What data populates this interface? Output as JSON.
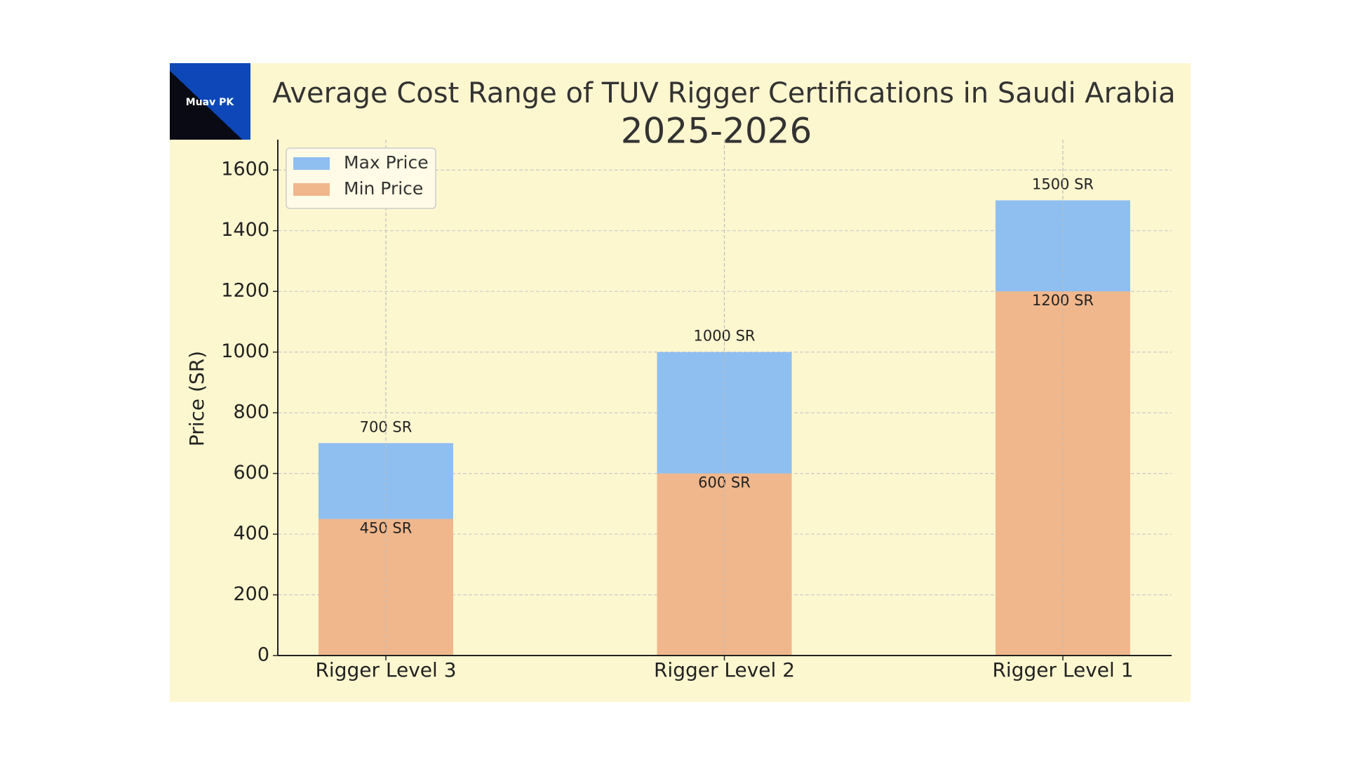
{
  "chart_data": {
    "type": "bar",
    "logo": "Muav PK",
    "title": "Average Cost Range of TUV Rigger Certifications in Saudi Arabia",
    "subtitle": "2025-2026",
    "y_label": "Price (SR)",
    "categories": [
      "Rigger Level 3",
      "Rigger Level 2",
      "Rigger Level 1"
    ],
    "series": [
      {
        "name": "Max Price",
        "color": "#8fbff0",
        "values": [
          700,
          1000,
          1500
        ],
        "value_labels": [
          "700 SR",
          "1000 SR",
          "1500 SR"
        ]
      },
      {
        "name": "Min Price",
        "color": "#f0b78c",
        "values": [
          450,
          600,
          1200
        ],
        "value_labels": [
          "450 SR",
          "600 SR",
          "1200 SR"
        ]
      }
    ],
    "ylim": [
      0,
      1700
    ],
    "yticks": [
      0,
      200,
      400,
      600,
      800,
      1000,
      1200,
      1400,
      1600
    ],
    "grid": true,
    "legend": "upper left"
  }
}
